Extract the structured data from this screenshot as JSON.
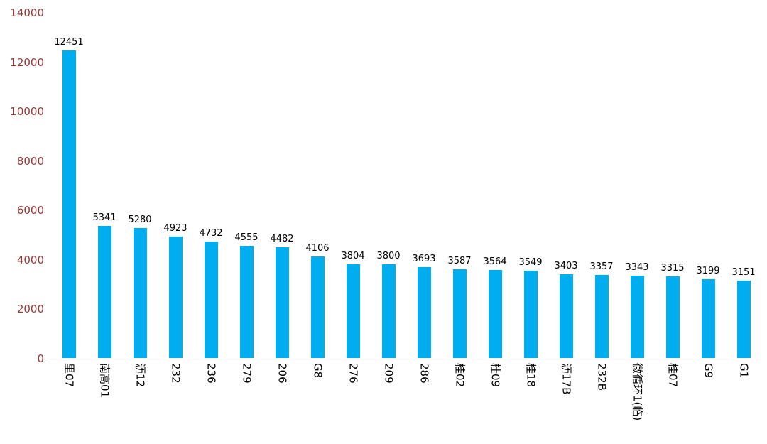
{
  "chart_data": {
    "type": "bar",
    "categories": [
      "里07",
      "南高01",
      "沥12",
      "232",
      "236",
      "279",
      "206",
      "G8",
      "276",
      "209",
      "286",
      "桂02",
      "桂09",
      "桂18",
      "沥17B",
      "232B",
      "微循环1(临)",
      "桂07",
      "G9",
      "G1"
    ],
    "values": [
      12451,
      5341,
      5280,
      4923,
      4732,
      4555,
      4482,
      4106,
      3804,
      3800,
      3693,
      3587,
      3564,
      3549,
      3403,
      3357,
      3343,
      3315,
      3199,
      3151
    ],
    "title": "",
    "xlabel": "",
    "ylabel": "",
    "ylim": [
      0,
      14000
    ],
    "yticks": [
      0,
      2000,
      4000,
      6000,
      8000,
      10000,
      12000,
      14000
    ],
    "grid": false,
    "legend": false,
    "data_labels": true,
    "x_label_rotation_deg": 90,
    "colors": {
      "bar": "#00AEEF",
      "ytick_text": "#953735",
      "value_label_text": "#000000",
      "category_label_text": "#000000",
      "axis_line": "#BFBFBF",
      "background": "#FFFFFF"
    }
  }
}
